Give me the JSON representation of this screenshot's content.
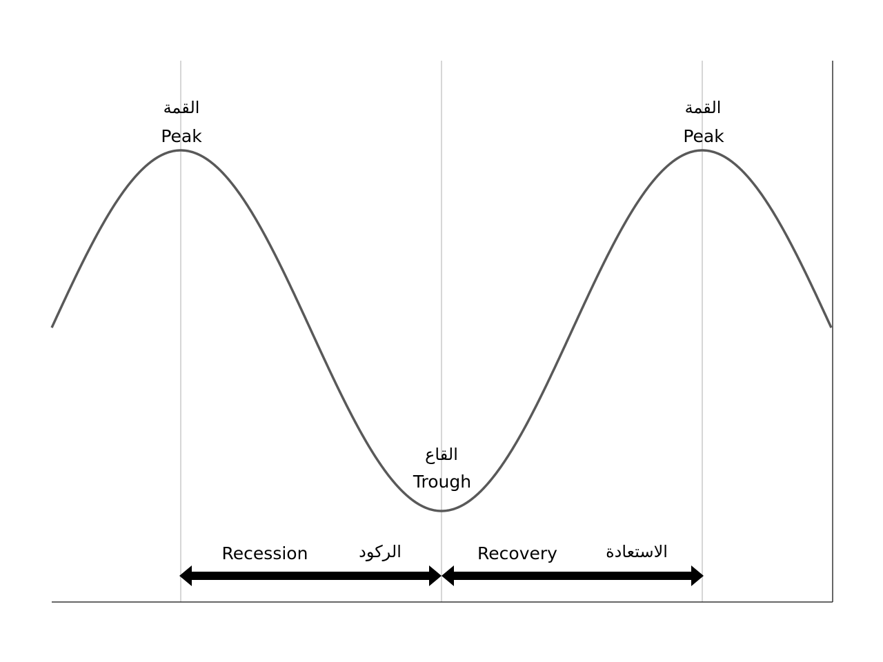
{
  "peaks": [
    {
      "arabic": "القمة",
      "english": "Peak"
    },
    {
      "arabic": "القمة",
      "english": "Peak"
    }
  ],
  "trough": {
    "arabic": "القاع",
    "english": "Trough"
  },
  "phases": [
    {
      "english": "Recession",
      "arabic": "الركود"
    },
    {
      "english": "Recovery",
      "arabic": "الاستعادة"
    }
  ]
}
